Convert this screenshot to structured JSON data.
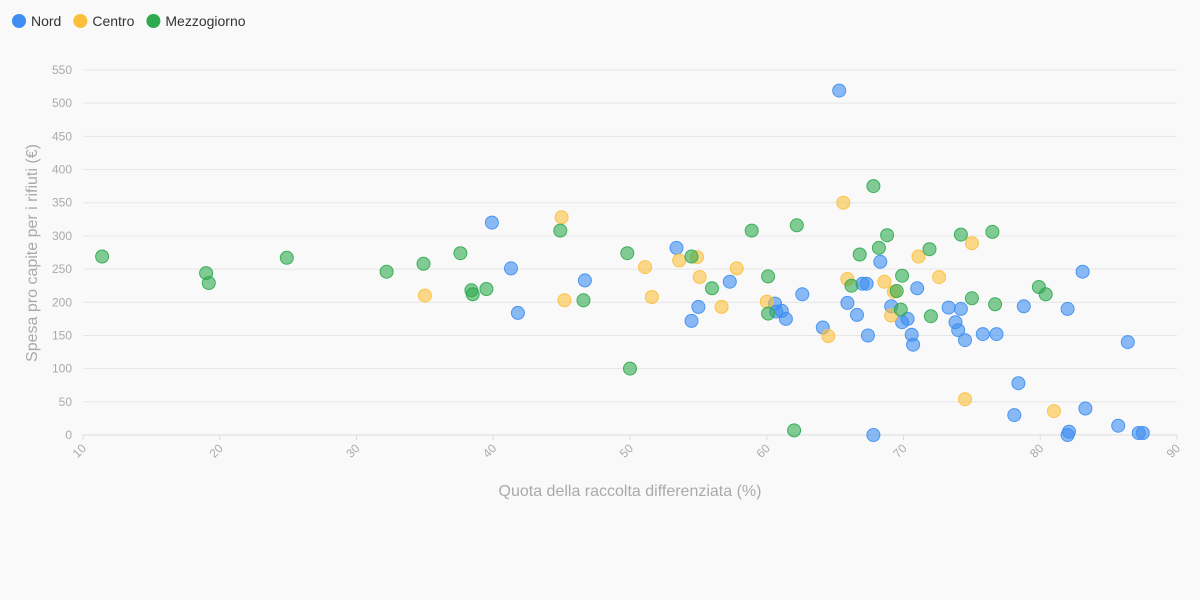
{
  "chart_data": {
    "type": "scatter",
    "title": "",
    "xlabel": "Quota della raccolta differenziata (%)",
    "ylabel": "Spesa pro capite per i rifiuti (€)",
    "xlim": [
      10,
      90
    ],
    "ylim": [
      0,
      550
    ],
    "xticks": [
      10,
      20,
      30,
      40,
      50,
      60,
      70,
      80,
      90
    ],
    "yticks": [
      0,
      50,
      100,
      150,
      200,
      250,
      300,
      350,
      400,
      450,
      500,
      550
    ],
    "grid": true,
    "legend_position": "top-left",
    "series": [
      {
        "name": "Nord",
        "color": "#3d8ef0",
        "points": [
          [
            39.9,
            320
          ],
          [
            41.3,
            251
          ],
          [
            41.8,
            184
          ],
          [
            46.7,
            233
          ],
          [
            53.4,
            282
          ],
          [
            54.5,
            172
          ],
          [
            55.0,
            193
          ],
          [
            57.3,
            231
          ],
          [
            60.6,
            198
          ],
          [
            60.7,
            186
          ],
          [
            61.1,
            187
          ],
          [
            61.4,
            175
          ],
          [
            62.6,
            212
          ],
          [
            64.1,
            162
          ],
          [
            65.3,
            519
          ],
          [
            65.9,
            199
          ],
          [
            66.6,
            181
          ],
          [
            67.0,
            228
          ],
          [
            67.3,
            228
          ],
          [
            67.4,
            150
          ],
          [
            67.8,
            0
          ],
          [
            68.3,
            261
          ],
          [
            69.1,
            194
          ],
          [
            69.9,
            170
          ],
          [
            70.3,
            175
          ],
          [
            70.6,
            151
          ],
          [
            70.7,
            136
          ],
          [
            71.0,
            221
          ],
          [
            73.3,
            192
          ],
          [
            73.8,
            170
          ],
          [
            74.0,
            158
          ],
          [
            74.2,
            190
          ],
          [
            74.5,
            143
          ],
          [
            75.8,
            152
          ],
          [
            76.8,
            152
          ],
          [
            78.1,
            30
          ],
          [
            78.4,
            78
          ],
          [
            78.8,
            194
          ],
          [
            82.0,
            190
          ],
          [
            82.0,
            0
          ],
          [
            82.1,
            5
          ],
          [
            83.1,
            246
          ],
          [
            83.3,
            40
          ],
          [
            85.7,
            14
          ],
          [
            86.4,
            140
          ],
          [
            87.2,
            3
          ],
          [
            87.5,
            3
          ]
        ]
      },
      {
        "name": "Centro",
        "color": "#fbbf3c",
        "points": [
          [
            35.0,
            210
          ],
          [
            45.0,
            328
          ],
          [
            45.2,
            203
          ],
          [
            51.1,
            253
          ],
          [
            51.6,
            208
          ],
          [
            53.6,
            263
          ],
          [
            54.9,
            268
          ],
          [
            55.1,
            238
          ],
          [
            56.7,
            193
          ],
          [
            57.8,
            251
          ],
          [
            60.0,
            201
          ],
          [
            64.5,
            149
          ],
          [
            65.6,
            350
          ],
          [
            65.9,
            235
          ],
          [
            68.6,
            231
          ],
          [
            69.1,
            180
          ],
          [
            69.3,
            216
          ],
          [
            71.1,
            269
          ],
          [
            72.6,
            238
          ],
          [
            74.5,
            54
          ],
          [
            75.0,
            289
          ],
          [
            81.0,
            36
          ]
        ]
      },
      {
        "name": "Mezzogiorno",
        "color": "#2eaa4f",
        "points": [
          [
            11.4,
            269
          ],
          [
            19.0,
            244
          ],
          [
            19.2,
            229
          ],
          [
            24.9,
            267
          ],
          [
            32.2,
            246
          ],
          [
            34.9,
            258
          ],
          [
            37.6,
            274
          ],
          [
            38.4,
            218
          ],
          [
            38.5,
            212
          ],
          [
            39.5,
            220
          ],
          [
            44.9,
            308
          ],
          [
            46.6,
            203
          ],
          [
            49.8,
            274
          ],
          [
            50.0,
            100
          ],
          [
            54.5,
            269
          ],
          [
            56.0,
            221
          ],
          [
            58.9,
            308
          ],
          [
            60.1,
            239
          ],
          [
            60.1,
            183
          ],
          [
            62.0,
            7
          ],
          [
            62.2,
            316
          ],
          [
            66.2,
            225
          ],
          [
            66.8,
            272
          ],
          [
            67.8,
            375
          ],
          [
            68.2,
            282
          ],
          [
            68.8,
            301
          ],
          [
            69.5,
            217
          ],
          [
            69.8,
            189
          ],
          [
            69.9,
            240
          ],
          [
            71.9,
            280
          ],
          [
            72.0,
            179
          ],
          [
            74.2,
            302
          ],
          [
            75.0,
            206
          ],
          [
            76.5,
            306
          ],
          [
            76.7,
            197
          ],
          [
            79.9,
            223
          ],
          [
            80.4,
            212
          ]
        ]
      }
    ]
  }
}
